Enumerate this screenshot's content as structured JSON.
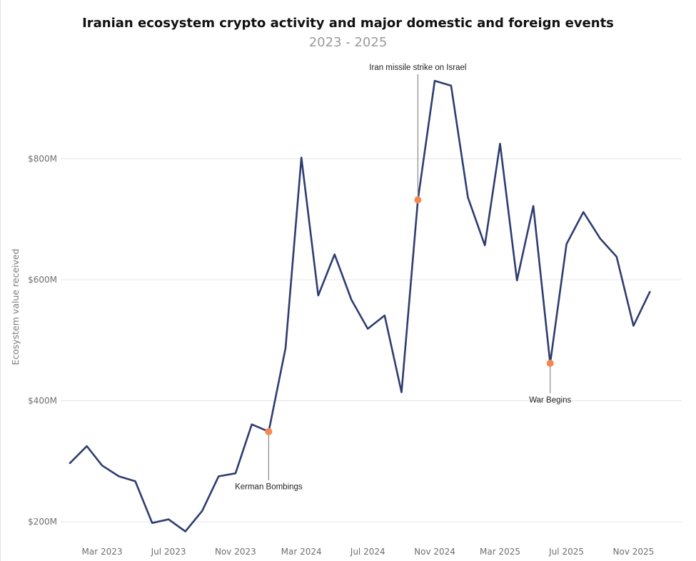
{
  "chart_data": {
    "type": "line",
    "title": "Iranian ecosystem crypto activity and major domestic and foreign events",
    "subtitle": "2023 - 2025",
    "ylabel": "Ecosystem value received",
    "ylim": [
      170,
      1000
    ],
    "yticks": [
      200,
      400,
      600,
      800
    ],
    "yticklabels": [
      "$200M",
      "$400M",
      "$600M",
      "$800M"
    ],
    "xticks": [
      "2023-03-01",
      "2023-07-01",
      "2023-11-01",
      "2024-03-01",
      "2024-07-01",
      "2024-11-01",
      "2025-03-01",
      "2025-07-01",
      "2025-11-01"
    ],
    "xticklabels": [
      "Mar 2023",
      "Jul 2023",
      "Nov 2023",
      "Mar 2024",
      "Jul 2024",
      "Nov 2024",
      "Mar 2025",
      "Jul 2025",
      "Nov 2025"
    ],
    "grid": "horizontal",
    "line_color": "#2e3d70",
    "marker_color": "#f5874f",
    "x": [
      "2023-01-01",
      "2023-02-01",
      "2023-03-01",
      "2023-04-01",
      "2023-05-01",
      "2023-06-01",
      "2023-07-01",
      "2023-08-01",
      "2023-09-01",
      "2023-10-01",
      "2023-11-01",
      "2023-12-01",
      "2024-01-01",
      "2024-02-01",
      "2024-03-01",
      "2024-04-01",
      "2024-05-01",
      "2024-06-01",
      "2024-07-01",
      "2024-08-01",
      "2024-09-01",
      "2024-10-01",
      "2024-11-01",
      "2024-12-01",
      "2025-01-01",
      "2025-02-01",
      "2025-03-01",
      "2025-04-01",
      "2025-05-01",
      "2025-06-01",
      "2025-07-01",
      "2025-08-01",
      "2025-09-01",
      "2025-10-01",
      "2025-11-01",
      "2025-12-01"
    ],
    "values": [
      297,
      325,
      293,
      275,
      267,
      198,
      204,
      184,
      218,
      275,
      280,
      361,
      349,
      487,
      802,
      574,
      642,
      567,
      519,
      541,
      414,
      732,
      929,
      921,
      736,
      657,
      825,
      599,
      722,
      462,
      659,
      712,
      668,
      638,
      524,
      580
    ],
    "annotations": [
      {
        "label": "Kerman Bombings",
        "x": "2024-01-01",
        "y": 349,
        "label_side": "below"
      },
      {
        "label": "Iran missile strike on Israel",
        "x": "2024-10-01",
        "y": 732,
        "label_side": "above"
      },
      {
        "label": "War Begins",
        "x": "2025-06-01",
        "y": 462,
        "label_side": "below"
      }
    ]
  }
}
